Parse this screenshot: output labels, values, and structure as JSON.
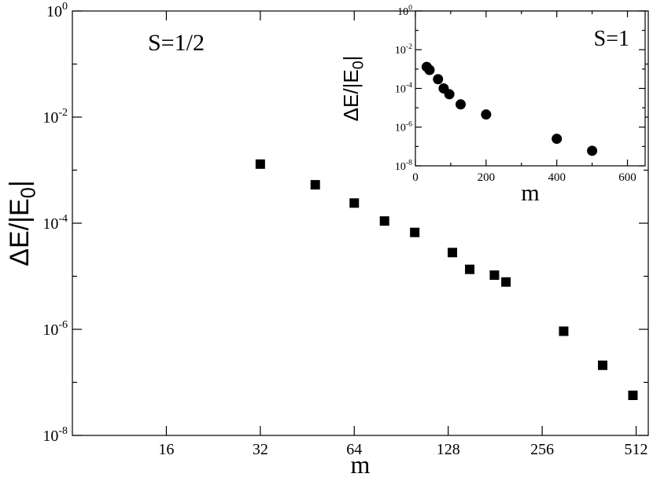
{
  "chart_data": [
    {
      "type": "scatter",
      "series": [
        {
          "marker": "square",
          "x": [
            32,
            48,
            64,
            80,
            100,
            132,
            150,
            180,
            196,
            300,
            400,
            500
          ],
          "y": [
            0.0013,
            0.00053,
            0.00024,
            0.00011,
            6.7e-05,
            2.8e-05,
            1.35e-05,
            1.05e-05,
            7.8e-06,
            9.2e-07,
            2.1e-07,
            5.7e-08
          ]
        }
      ],
      "xscale": "log2",
      "yscale": "log10",
      "xlim": [
        8,
        560
      ],
      "ylim": [
        1e-08,
        1
      ],
      "xticks": [
        16,
        32,
        64,
        128,
        256,
        512
      ],
      "xtick_labels": [
        "16",
        "32",
        "64",
        "128",
        "256",
        "512"
      ],
      "ytick_labels": [
        {
          "base": "10",
          "exp": "0"
        },
        {
          "base": "10",
          "exp": "-2"
        },
        {
          "base": "10",
          "exp": "-4"
        },
        {
          "base": "10",
          "exp": "-6"
        },
        {
          "base": "10",
          "exp": "-8"
        }
      ],
      "xlabel": "m",
      "ylabel": {
        "prefix": "ΔE/|E",
        "sub": "0",
        "suffix": "|"
      },
      "annotation": "S=1/2",
      "grid": false,
      "legend": "none"
    },
    {
      "type": "scatter",
      "series": [
        {
          "marker": "circle",
          "x": [
            32,
            40,
            64,
            80,
            96,
            128,
            200,
            400,
            500
          ],
          "y": [
            0.0013,
            0.0009,
            0.0003,
            0.0001,
            5e-05,
            1.5e-05,
            4.5e-06,
            2.5e-07,
            6e-08
          ]
        }
      ],
      "xscale": "linear",
      "yscale": "log10",
      "xlim": [
        0,
        650
      ],
      "ylim": [
        1e-08,
        1
      ],
      "xticks": [
        0,
        200,
        400,
        600
      ],
      "xtick_labels": [
        "0",
        "200",
        "400",
        "600"
      ],
      "ytick_labels": [
        {
          "base": "10",
          "exp": "0"
        },
        {
          "base": "10",
          "exp": "-2"
        },
        {
          "base": "10",
          "exp": "-4"
        },
        {
          "base": "10",
          "exp": "-6"
        },
        {
          "base": "10",
          "exp": "-8"
        }
      ],
      "xlabel": "m",
      "ylabel": {
        "prefix": "ΔE/|E",
        "sub": "0",
        "suffix": "|"
      },
      "annotation": "S=1",
      "grid": false,
      "legend": "none"
    }
  ]
}
